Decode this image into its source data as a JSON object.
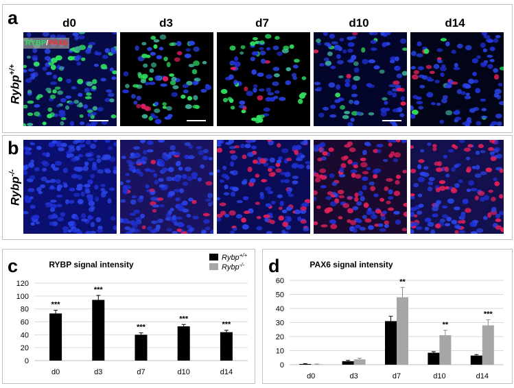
{
  "panel_a": {
    "letter": "a",
    "row_label_base": "Rybp",
    "row_label_sup": "+/+",
    "days": [
      "d0",
      "d3",
      "d7",
      "d10",
      "d14"
    ],
    "overlay_green": "RYBP",
    "overlay_sep": "/",
    "overlay_red": "PAX6"
  },
  "panel_b": {
    "letter": "b",
    "row_label_base": "Rybp",
    "row_label_sup": "-/-"
  },
  "colors": {
    "nuclei_blue": "#1f2fd0",
    "rybp_green": "#2fe060",
    "pax6_red": "#e0205a",
    "wt_bar": "#000000",
    "ko_bar": "#a6a6a6"
  },
  "chart_data": [
    {
      "letter": "c",
      "type": "bar",
      "title": "RYBP signal intensity",
      "categories": [
        "d0",
        "d3",
        "d7",
        "d10",
        "d14"
      ],
      "series": [
        {
          "name_base": "Rybp",
          "name_sup": "+/+",
          "values": [
            73,
            94,
            40,
            53,
            44
          ],
          "errors": [
            5,
            7,
            3,
            3,
            3
          ]
        },
        {
          "name_base": "Rybp",
          "name_sup": "-/-",
          "values": [
            0,
            0,
            0,
            0,
            0
          ],
          "errors": [
            0,
            0,
            0,
            0,
            0
          ]
        }
      ],
      "significance": [
        "***",
        "***",
        "***",
        "***",
        "***"
      ],
      "yticks": [
        0,
        20,
        40,
        60,
        80,
        100,
        120
      ],
      "ylim": [
        0,
        120
      ],
      "grid": true
    },
    {
      "letter": "d",
      "type": "bar",
      "title": "PAX6 signal intensity",
      "categories": [
        "d0",
        "d3",
        "d7",
        "d10",
        "d14"
      ],
      "series": [
        {
          "values": [
            0.5,
            2.5,
            31,
            8.5,
            6.5
          ],
          "errors": [
            0.3,
            0.6,
            3.5,
            0.8,
            0.7
          ]
        },
        {
          "values": [
            0.3,
            3.8,
            48,
            21,
            28
          ],
          "errors": [
            0.2,
            0.8,
            7,
            3.5,
            4
          ]
        }
      ],
      "significance": [
        "",
        "",
        "**",
        "**",
        "***"
      ],
      "yticks": [
        0,
        10,
        20,
        30,
        40,
        50,
        60
      ],
      "ylim": [
        0,
        60
      ],
      "grid": true
    }
  ]
}
